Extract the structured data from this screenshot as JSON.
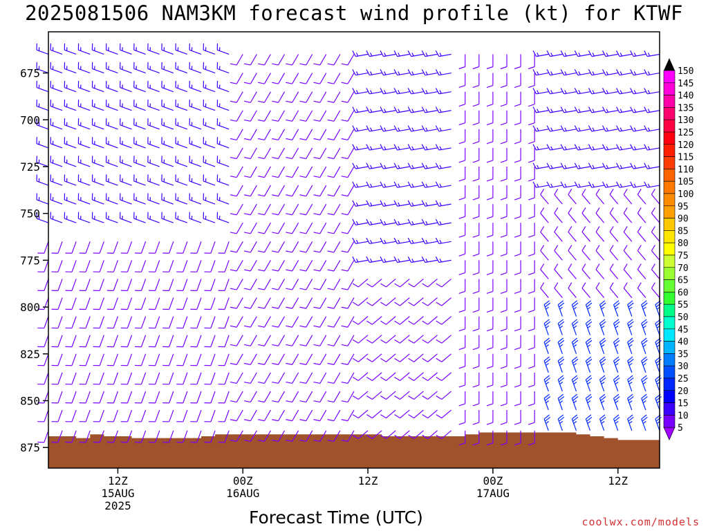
{
  "chart_data": {
    "type": "wind_barb_profile",
    "title": "2025081506 NAM3KM forecast wind profile (kt) for KTWF",
    "xlabel": "Forecast Time (UTC)",
    "ylabel": "",
    "y_axis": {
      "range": [
        886,
        653
      ],
      "inverted": true,
      "ticks": [
        "675",
        "700",
        "725",
        "750",
        "775",
        "800",
        "825",
        "850",
        "875"
      ]
    },
    "x_axis": {
      "range_hours": [
        -4,
        84
      ],
      "ticks": [
        {
          "hour": 6,
          "lines": [
            "12Z",
            "15AUG",
            "2025"
          ]
        },
        {
          "hour": 24,
          "lines": [
            "00Z",
            "16AUG"
          ]
        },
        {
          "hour": 42,
          "lines": [
            "12Z"
          ]
        },
        {
          "hour": 60,
          "lines": [
            "00Z",
            "17AUG"
          ]
        },
        {
          "hour": 78,
          "lines": [
            "12Z"
          ]
        }
      ]
    },
    "colorbar": {
      "units": "kt",
      "labels": [
        "150",
        "145",
        "140",
        "135",
        "130",
        "125",
        "120",
        "115",
        "110",
        "105",
        "100",
        "95",
        "90",
        "85",
        "80",
        "75",
        "70",
        "65",
        "60",
        "55",
        "50",
        "45",
        "40",
        "35",
        "30",
        "25",
        "20",
        "15",
        "10",
        "5"
      ],
      "colors": [
        "#ff00ff",
        "#ff00d8",
        "#ff00a8",
        "#ff0070",
        "#ff0040",
        "#ff0010",
        "#ff1e00",
        "#ff3c00",
        "#ff6400",
        "#ff7800",
        "#ff8c00",
        "#ffa000",
        "#ffc800",
        "#ffe600",
        "#ffff00",
        "#ccff33",
        "#99ff33",
        "#66ff33",
        "#33ff33",
        "#00ff88",
        "#00ffcc",
        "#00e8ff",
        "#00b4ff",
        "#007dff",
        "#0050ff",
        "#0028ff",
        "#0000ff",
        "#3c00ff",
        "#7800ff",
        "#a000ff"
      ]
    },
    "terrain_color": "#a0522d",
    "terrain_top_mb": [
      {
        "hour": -4,
        "mb": 869
      },
      {
        "hour": 0,
        "mb": 870
      },
      {
        "hour": 2,
        "mb": 868
      },
      {
        "hour": 4,
        "mb": 869
      },
      {
        "hour": 8,
        "mb": 870
      },
      {
        "hour": 16,
        "mb": 870
      },
      {
        "hour": 18,
        "mb": 869
      },
      {
        "hour": 20,
        "mb": 868
      },
      {
        "hour": 42,
        "mb": 868
      },
      {
        "hour": 44,
        "mb": 869
      },
      {
        "hour": 54,
        "mb": 869
      },
      {
        "hour": 56,
        "mb": 868
      },
      {
        "hour": 58,
        "mb": 867
      },
      {
        "hour": 72,
        "mb": 868
      },
      {
        "hour": 74,
        "mb": 869
      },
      {
        "hour": 76,
        "mb": 870
      },
      {
        "hour": 78,
        "mb": 871
      },
      {
        "hour": 84,
        "mb": 871
      }
    ],
    "barb_levels_mb": [
      866,
      855,
      845,
      835,
      825,
      815,
      805,
      795,
      785,
      775,
      765,
      755,
      745,
      735,
      725,
      715,
      705,
      695,
      685,
      675,
      665
    ],
    "barb_hours": [
      -4,
      -2,
      0,
      2,
      4,
      6,
      8,
      10,
      12,
      14,
      16,
      18,
      20,
      22,
      24,
      26,
      28,
      30,
      32,
      34,
      36,
      38,
      40,
      42,
      44,
      46,
      48,
      50,
      52,
      54,
      56,
      58,
      60,
      62,
      64,
      66,
      68,
      70,
      72,
      74,
      76,
      78,
      80,
      82,
      84
    ],
    "wind_regimes": [
      {
        "hours": [
          -4,
          22
        ],
        "mb": [
          653,
          760
        ],
        "dir_deg": 290,
        "speed_kt": 15
      },
      {
        "hours": [
          -4,
          22
        ],
        "mb": [
          760,
          866
        ],
        "dir_deg": 200,
        "speed_kt": 10
      },
      {
        "hours": [
          24,
          40
        ],
        "mb": [
          653,
          866
        ],
        "dir_deg": 210,
        "speed_kt": 10
      },
      {
        "hours": [
          42,
          54
        ],
        "mb": [
          653,
          780
        ],
        "dir_deg": 260,
        "speed_kt": 15
      },
      {
        "hours": [
          42,
          54
        ],
        "mb": [
          780,
          866
        ],
        "dir_deg": 230,
        "speed_kt": 10
      },
      {
        "hours": [
          56,
          66
        ],
        "mb": [
          653,
          866
        ],
        "dir_deg": 180,
        "speed_kt": 10
      },
      {
        "hours": [
          68,
          84
        ],
        "mb": [
          653,
          740
        ],
        "dir_deg": 260,
        "speed_kt": 15
      },
      {
        "hours": [
          68,
          84
        ],
        "mb": [
          740,
          800
        ],
        "dir_deg": 320,
        "speed_kt": 10
      },
      {
        "hours": [
          68,
          84
        ],
        "mb": [
          800,
          866
        ],
        "dir_deg": 340,
        "speed_kt": 25
      }
    ]
  },
  "footer": {
    "credit": "coolwx.com/models"
  }
}
